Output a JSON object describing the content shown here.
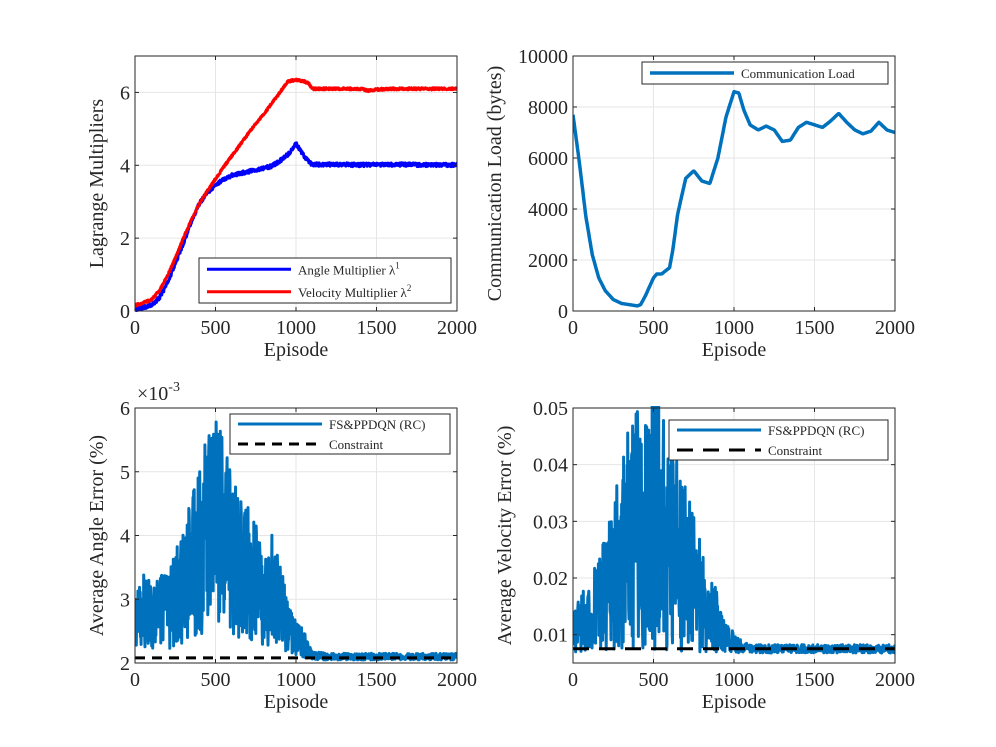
{
  "colors": {
    "blue_series": "#0072bd",
    "pure_blue": "#0000ff",
    "red": "#ff0000",
    "black": "#000000",
    "grid": "#e6e6e6",
    "axis": "#262626"
  },
  "chart_data": [
    {
      "id": "lagrange",
      "type": "line",
      "title": "",
      "xlabel": "Episode",
      "ylabel": "Lagrange Multipliers",
      "xlim": [
        0,
        2000
      ],
      "ylim": [
        0,
        7
      ],
      "xticks": [
        0,
        500,
        1000,
        1500,
        2000
      ],
      "yticks": [
        0,
        2,
        4,
        6
      ],
      "grid": true,
      "legend_position": "bottom-right",
      "series": [
        {
          "name": "Angle Multiplier λ¹",
          "legend_label": "Angle Multiplier λ",
          "legend_sup": "1",
          "color": "#0000ff",
          "width": 3,
          "noise": 0.05,
          "x": [
            0,
            100,
            150,
            200,
            250,
            300,
            350,
            400,
            450,
            500,
            550,
            600,
            650,
            700,
            750,
            800,
            850,
            900,
            950,
            980,
            1000,
            1020,
            1050,
            1100,
            1150,
            1200,
            1300,
            1400,
            1500,
            1600,
            1700,
            1800,
            1900,
            2000
          ],
          "y": [
            0.05,
            0.15,
            0.35,
            0.75,
            1.3,
            1.85,
            2.45,
            2.95,
            3.25,
            3.45,
            3.62,
            3.72,
            3.78,
            3.82,
            3.88,
            3.92,
            3.98,
            4.12,
            4.3,
            4.45,
            4.6,
            4.45,
            4.25,
            4.02,
            4.02,
            4.02,
            4.02,
            4.01,
            4.02,
            4.02,
            4.02,
            4.01,
            4.01,
            4.01
          ]
        },
        {
          "name": "Velocity Multiplier λ²",
          "legend_label": "Velocity Multiplier λ",
          "legend_sup": "2",
          "color": "#ff0000",
          "width": 3,
          "noise": 0.03,
          "x": [
            0,
            100,
            150,
            200,
            250,
            300,
            350,
            400,
            450,
            500,
            550,
            600,
            650,
            700,
            750,
            800,
            850,
            900,
            950,
            1000,
            1050,
            1080,
            1100,
            1200,
            1300,
            1400,
            1450,
            1500,
            1600,
            1700,
            1800,
            1900,
            2000
          ],
          "y": [
            0.15,
            0.3,
            0.55,
            0.95,
            1.45,
            2.0,
            2.5,
            2.95,
            3.3,
            3.62,
            3.95,
            4.25,
            4.55,
            4.85,
            5.15,
            5.4,
            5.7,
            6.0,
            6.3,
            6.35,
            6.3,
            6.25,
            6.1,
            6.1,
            6.1,
            6.1,
            6.05,
            6.08,
            6.1,
            6.1,
            6.1,
            6.1,
            6.1
          ]
        }
      ]
    },
    {
      "id": "comm",
      "type": "line",
      "title": "",
      "xlabel": "Episode",
      "ylabel": "Communication Load (bytes)",
      "xlim": [
        0,
        2000
      ],
      "ylim": [
        0,
        10000
      ],
      "xticks": [
        0,
        500,
        1000,
        1500,
        2000
      ],
      "yticks": [
        0,
        2000,
        4000,
        6000,
        8000,
        10000
      ],
      "grid": true,
      "legend_position": "top-right",
      "series": [
        {
          "name": "Communication Load",
          "color": "#0072bd",
          "width": 3.5,
          "noise": 0,
          "x": [
            0,
            40,
            80,
            120,
            160,
            200,
            250,
            300,
            350,
            400,
            420,
            450,
            500,
            520,
            550,
            600,
            620,
            650,
            700,
            750,
            800,
            850,
            900,
            950,
            1000,
            1030,
            1060,
            1100,
            1150,
            1200,
            1250,
            1300,
            1350,
            1400,
            1450,
            1500,
            1550,
            1600,
            1650,
            1700,
            1750,
            1800,
            1850,
            1900,
            1950,
            2000
          ],
          "y": [
            7700,
            5800,
            3700,
            2200,
            1300,
            800,
            450,
            300,
            250,
            200,
            250,
            600,
            1300,
            1450,
            1450,
            1700,
            2400,
            3800,
            5200,
            5500,
            5100,
            5000,
            6000,
            7600,
            8600,
            8550,
            7900,
            7300,
            7100,
            7250,
            7100,
            6650,
            6700,
            7200,
            7400,
            7300,
            7200,
            7450,
            7750,
            7400,
            7100,
            6950,
            7050,
            7400,
            7100,
            7000
          ]
        }
      ]
    },
    {
      "id": "angle",
      "type": "line",
      "title": "",
      "xlabel": "Episode",
      "ylabel": "Average Angle Error (%)",
      "exponent_label": "×10",
      "exponent_sup": "-3",
      "xlim": [
        0,
        2000
      ],
      "ylim": [
        2,
        6
      ],
      "xticks": [
        0,
        500,
        1000,
        1500,
        2000
      ],
      "yticks": [
        2,
        3,
        4,
        5,
        6
      ],
      "grid": true,
      "legend_position": "top-right",
      "series": [
        {
          "name": "FS&PPDQN (RC)",
          "color": "#0072bd",
          "width": 3,
          "noise": 0.35,
          "x": [
            0,
            50,
            100,
            150,
            200,
            250,
            300,
            350,
            400,
            450,
            500,
            550,
            600,
            650,
            700,
            750,
            800,
            850,
            900,
            950,
            1000,
            1050,
            1100,
            1200,
            1400,
            1600,
            1800,
            2000
          ],
          "y": [
            2.6,
            2.9,
            2.7,
            2.8,
            2.8,
            3.0,
            3.2,
            3.6,
            3.7,
            4.1,
            4.4,
            4.0,
            3.7,
            3.5,
            3.4,
            3.3,
            2.9,
            3.2,
            2.9,
            2.6,
            2.4,
            2.3,
            2.12,
            2.1,
            2.1,
            2.1,
            2.1,
            2.1
          ]
        },
        {
          "name": "Constraint",
          "color": "#000000",
          "width": 3,
          "dash": "10,7",
          "noise": 0,
          "x": [
            0,
            2000
          ],
          "y": [
            2.08,
            2.08
          ]
        }
      ]
    },
    {
      "id": "velocity",
      "type": "line",
      "title": "",
      "xlabel": "Episode",
      "ylabel": "Average Velocity Error (%)",
      "xlim": [
        0,
        2000
      ],
      "ylim": [
        0.005,
        0.05
      ],
      "xticks": [
        0,
        500,
        1000,
        1500,
        2000
      ],
      "yticks": [
        0.01,
        0.02,
        0.03,
        0.04,
        0.05
      ],
      "grid": true,
      "legend_position": "top-right",
      "series": [
        {
          "name": "FS&PPDQN (RC)",
          "color": "#0072bd",
          "width": 3,
          "noise": 0.005,
          "x": [
            0,
            50,
            100,
            150,
            200,
            250,
            300,
            350,
            400,
            450,
            500,
            550,
            600,
            650,
            700,
            750,
            800,
            850,
            900,
            950,
            1000,
            1050,
            1100,
            1200,
            1400,
            1600,
            1800,
            2000
          ],
          "y": [
            0.011,
            0.012,
            0.013,
            0.015,
            0.017,
            0.02,
            0.024,
            0.027,
            0.029,
            0.03,
            0.031,
            0.028,
            0.027,
            0.025,
            0.022,
            0.02,
            0.016,
            0.014,
            0.012,
            0.01,
            0.0085,
            0.0078,
            0.0075,
            0.0075,
            0.0075,
            0.0075,
            0.0075,
            0.0075
          ]
        },
        {
          "name": "Constraint",
          "color": "#000000",
          "width": 3,
          "dash": "16,10",
          "noise": 0,
          "x": [
            0,
            2000
          ],
          "y": [
            0.0075,
            0.0075
          ]
        }
      ]
    }
  ]
}
